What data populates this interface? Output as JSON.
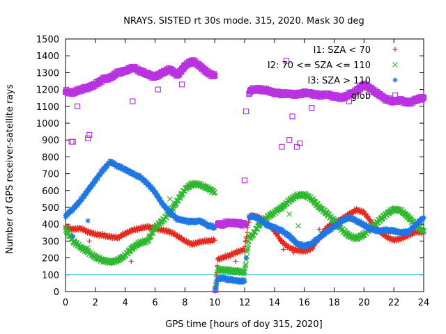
{
  "chart_data": {
    "type": "scatter",
    "title": "NRAYS. SISTED rt 30s mode. 315, 2020. Mask 30 deg",
    "xlabel": "GPS time [hours of doy 315, 2020]",
    "ylabel": "Number of GPS receiver-satellite rays",
    "xlim": [
      0,
      24
    ],
    "ylim": [
      0,
      1500
    ],
    "x_ticks": [
      "0",
      "2",
      "4",
      "6",
      "8",
      "10",
      "12",
      "14",
      "16",
      "18",
      "20",
      "22",
      "24"
    ],
    "y_ticks": [
      "0",
      "100",
      "200",
      "300",
      "400",
      "500",
      "600",
      "700",
      "800",
      "900",
      "1000",
      "1100",
      "1200",
      "1300",
      "1400",
      "1500"
    ],
    "reference_line": {
      "y": 100,
      "color": "#40d0d8"
    },
    "series": [
      {
        "name": "I1: SZA < 70",
        "marker": "+",
        "color": "#e8291c",
        "x": [
          0,
          0.5,
          1,
          1.5,
          2,
          2.5,
          3,
          3.5,
          4,
          4.5,
          5,
          5.5,
          6,
          6.5,
          7,
          7.5,
          8,
          8.5,
          9,
          9.5,
          10,
          10.05,
          10.2,
          10.5,
          11,
          11.5,
          12,
          12.3,
          12.5,
          13,
          13.5,
          14,
          14.5,
          15,
          15.5,
          16,
          16.5,
          17,
          17.5,
          18,
          18.5,
          19,
          19.5,
          20,
          20.5,
          21,
          21.5,
          22,
          22.5,
          23,
          23.5,
          24
        ],
        "y": [
          380,
          370,
          375,
          355,
          340,
          335,
          325,
          320,
          345,
          365,
          375,
          385,
          375,
          365,
          355,
          330,
          300,
          280,
          295,
          300,
          305,
          20,
          190,
          200,
          215,
          235,
          250,
          440,
          450,
          440,
          410,
          360,
          295,
          260,
          245,
          240,
          255,
          320,
          380,
          410,
          430,
          460,
          485,
          470,
          410,
          360,
          325,
          305,
          315,
          335,
          355,
          350
        ]
      },
      {
        "name": "I2: 70 <= SZA <= 110",
        "marker": "x",
        "color": "#2eb82e",
        "x": [
          0,
          0.5,
          1,
          1.5,
          2,
          2.5,
          3,
          3.5,
          4,
          4.5,
          5,
          5.5,
          6,
          6.5,
          7,
          7.5,
          8,
          8.5,
          9,
          9.5,
          10,
          10.05,
          10.2,
          10.5,
          11,
          11.5,
          12,
          12.3,
          12.5,
          13,
          13.5,
          14,
          14.5,
          15,
          15.5,
          16,
          16.5,
          17,
          17.5,
          18,
          18.5,
          19,
          19.5,
          20,
          20.5,
          21,
          21.5,
          22,
          22.5,
          23,
          23.5,
          24
        ],
        "y": [
          370,
          300,
          265,
          235,
          205,
          185,
          175,
          185,
          215,
          260,
          290,
          300,
          380,
          420,
          470,
          540,
          605,
          640,
          635,
          615,
          590,
          15,
          130,
          130,
          125,
          120,
          115,
          320,
          330,
          400,
          440,
          470,
          500,
          540,
          570,
          575,
          550,
          500,
          465,
          420,
          370,
          330,
          315,
          340,
          380,
          420,
          460,
          490,
          480,
          440,
          390,
          360
        ]
      },
      {
        "name": "I3: SZA > 110",
        "marker": "*",
        "color": "#1f77e6",
        "x": [
          0,
          0.5,
          1,
          1.5,
          2,
          2.5,
          3,
          3.5,
          4,
          4.5,
          5,
          5.5,
          6,
          6.5,
          7,
          7.5,
          8,
          8.5,
          9,
          9.5,
          10,
          10.05,
          10.2,
          10.5,
          11,
          11.5,
          12,
          12.3,
          12.5,
          13,
          13.5,
          14,
          14.5,
          15,
          15.5,
          16,
          16.5,
          17,
          17.5,
          18,
          18.5,
          19,
          19.5,
          20,
          20.5,
          21,
          21.5,
          22,
          22.5,
          23,
          23.5,
          24
        ],
        "y": [
          450,
          490,
          540,
          600,
          660,
          720,
          770,
          745,
          725,
          700,
          680,
          640,
          590,
          520,
          470,
          430,
          420,
          415,
          420,
          395,
          380,
          10,
          75,
          80,
          70,
          65,
          60,
          440,
          450,
          430,
          395,
          380,
          360,
          330,
          285,
          270,
          285,
          320,
          355,
          385,
          420,
          440,
          420,
          395,
          370,
          360,
          365,
          360,
          350,
          355,
          400,
          440
        ]
      },
      {
        "name": "glob",
        "marker": "square",
        "color": "#b833e0",
        "x": [
          0,
          0.5,
          1,
          1.5,
          2,
          2.5,
          3,
          3.5,
          4,
          4.5,
          5,
          5.5,
          6,
          6.5,
          7,
          7.5,
          8,
          8.5,
          9,
          9.5,
          10,
          10.05,
          10.2,
          10.5,
          11,
          11.5,
          12,
          12.3,
          12.5,
          13,
          13.5,
          14,
          14.5,
          15,
          15.5,
          16,
          16.5,
          17,
          17.5,
          18,
          18.5,
          19,
          19.5,
          20,
          20.5,
          21,
          21.5,
          22,
          22.5,
          23,
          23.5,
          24
        ],
        "y": [
          1190,
          1180,
          1200,
          1210,
          1230,
          1260,
          1270,
          1300,
          1310,
          1330,
          1310,
          1290,
          1275,
          1300,
          1320,
          1285,
          1340,
          1370,
          1340,
          1300,
          1280,
          10,
          400,
          400,
          410,
          405,
          400,
          1180,
          1200,
          1200,
          1195,
          1180,
          1175,
          1175,
          1170,
          1180,
          1175,
          1165,
          1170,
          1160,
          1150,
          1170,
          1190,
          1230,
          1200,
          1170,
          1140,
          1130,
          1135,
          1120,
          1140,
          1150
        ]
      }
    ],
    "outliers": {
      "I1: SZA < 70": {
        "x": [
          1.6,
          4.4,
          11.4,
          14.6,
          15.3,
          17
        ],
        "y": [
          300,
          180,
          180,
          250,
          230,
          370
        ]
      },
      "I2: 70 <= SZA <= 110": {
        "x": [
          1.5,
          4.5,
          7,
          15,
          15.6
        ],
        "y": [
          260,
          260,
          550,
          460,
          390
        ]
      },
      "I3: SZA > 110": {
        "x": [
          0.5,
          1.5,
          12.1
        ],
        "y": [
          330,
          420,
          200
        ]
      },
      "glob": {
        "x": [
          0.4,
          0.5,
          0.8,
          1.5,
          1.6,
          4.5,
          6.2,
          7.8,
          12,
          12.1,
          14.5,
          14.8,
          15.0,
          15.2,
          15.5,
          15.7,
          16.5,
          19,
          20.5
        ],
        "y": [
          890,
          890,
          1100,
          910,
          930,
          1130,
          1200,
          1230,
          660,
          1070,
          860,
          1370,
          900,
          1040,
          860,
          880,
          1090,
          1130,
          1210
        ]
      }
    },
    "legend": [
      {
        "label": "I1: SZA < 70",
        "marker": "+",
        "color": "#e8291c"
      },
      {
        "label": "I2: 70 <= SZA <= 110",
        "marker": "x",
        "color": "#2eb82e"
      },
      {
        "label": "I3: SZA > 110",
        "marker": "*",
        "color": "#1f77e6"
      },
      {
        "label": "glob",
        "marker": "square",
        "color": "#b833e0"
      }
    ],
    "legend_position": "top-right"
  }
}
